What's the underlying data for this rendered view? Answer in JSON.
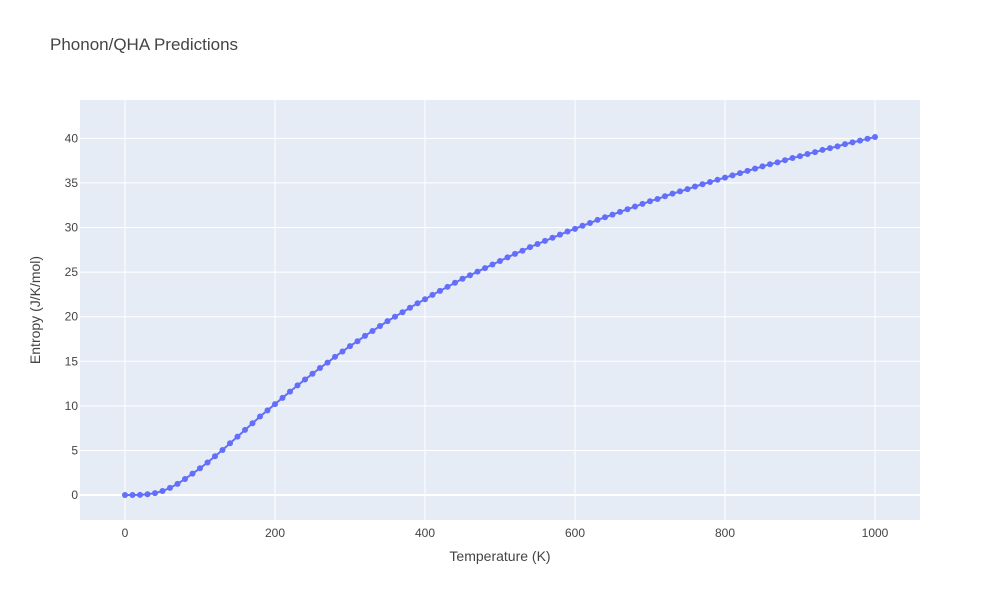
{
  "chart_data": {
    "type": "line",
    "title": "Phonon/QHA Predictions",
    "xlabel": "Temperature (K)",
    "ylabel": "Entropy (J/K/mol)",
    "xlim": [
      -60,
      1060
    ],
    "ylim": [
      -2.8,
      44.3
    ],
    "xticks": [
      0,
      200,
      400,
      600,
      800,
      1000
    ],
    "yticks": [
      0,
      5,
      10,
      15,
      20,
      25,
      30,
      35,
      40
    ],
    "grid": true,
    "markers": true,
    "colors": {
      "series": "#636efa",
      "plot_bg": "#e5ecf6",
      "grid": "#ffffff",
      "text": "#444444"
    },
    "series": [
      {
        "x": [
          0,
          10,
          20,
          30,
          40,
          50,
          60,
          70,
          80,
          90,
          100,
          110,
          120,
          130,
          140,
          150,
          160,
          170,
          180,
          190,
          200,
          210,
          220,
          230,
          240,
          250,
          260,
          270,
          280,
          290,
          300,
          310,
          320,
          330,
          340,
          350,
          360,
          370,
          380,
          390,
          400,
          410,
          420,
          430,
          440,
          450,
          460,
          470,
          480,
          490,
          500,
          510,
          520,
          530,
          540,
          550,
          560,
          570,
          580,
          590,
          600,
          610,
          620,
          630,
          640,
          650,
          660,
          670,
          680,
          690,
          700,
          710,
          720,
          730,
          740,
          750,
          760,
          770,
          780,
          790,
          800,
          810,
          820,
          830,
          840,
          850,
          860,
          870,
          880,
          890,
          900,
          910,
          920,
          930,
          940,
          950,
          960,
          970,
          980,
          990,
          1000
        ],
        "y": [
          0,
          0,
          0.02,
          0.09,
          0.22,
          0.45,
          0.8,
          1.25,
          1.8,
          2.4,
          3.0,
          3.65,
          4.35,
          5.05,
          5.8,
          6.55,
          7.3,
          8.05,
          8.8,
          9.5,
          10.2,
          10.9,
          11.6,
          12.3,
          12.95,
          13.6,
          14.25,
          14.85,
          15.5,
          16.1,
          16.7,
          17.25,
          17.85,
          18.4,
          18.95,
          19.5,
          20.0,
          20.5,
          21.0,
          21.5,
          21.95,
          22.45,
          22.9,
          23.35,
          23.8,
          24.25,
          24.65,
          25.05,
          25.45,
          25.85,
          26.25,
          26.65,
          27.05,
          27.4,
          27.8,
          28.15,
          28.5,
          28.85,
          29.2,
          29.55,
          29.85,
          30.2,
          30.5,
          30.85,
          31.15,
          31.45,
          31.75,
          32.05,
          32.35,
          32.65,
          32.95,
          33.2,
          33.5,
          33.8,
          34.05,
          34.3,
          34.6,
          34.85,
          35.1,
          35.35,
          35.6,
          35.85,
          36.1,
          36.35,
          36.6,
          36.85,
          37.1,
          37.3,
          37.55,
          37.8,
          38.0,
          38.25,
          38.45,
          38.7,
          38.9,
          39.1,
          39.35,
          39.55,
          39.75,
          39.95,
          40.15
        ]
      }
    ]
  }
}
